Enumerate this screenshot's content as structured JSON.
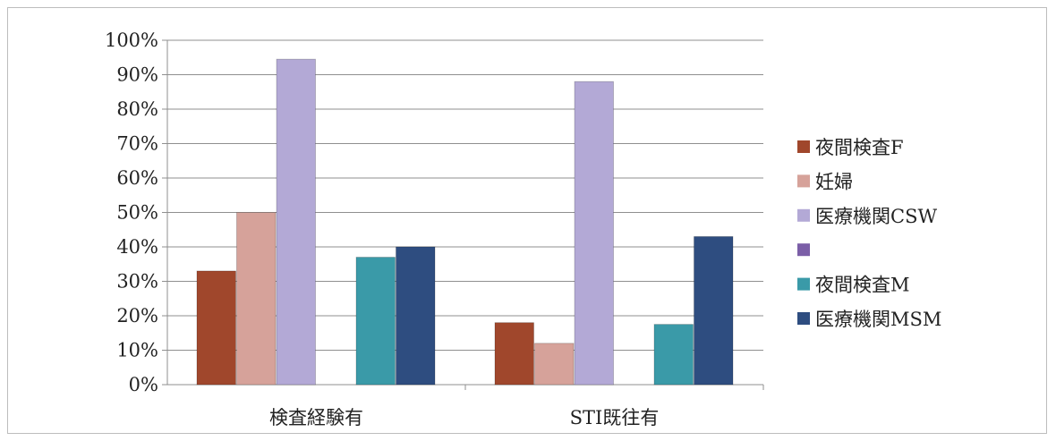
{
  "chart_data": {
    "type": "bar",
    "categories": [
      "検査経験有",
      "STI既往有"
    ],
    "series": [
      {
        "name": "夜間検査F",
        "color": "#a0472c",
        "values": [
          33,
          18
        ]
      },
      {
        "name": "妊婦",
        "color": "#d6a29a",
        "values": [
          50,
          12
        ]
      },
      {
        "name": "医療機関CSW",
        "color": "#b3a9d6",
        "values": [
          94.5,
          88
        ]
      },
      {
        "name": "",
        "color": "#7b5ea7",
        "values": [
          0,
          0
        ]
      },
      {
        "name": "夜間検査M",
        "color": "#3a9aa8",
        "values": [
          37,
          17.5
        ]
      },
      {
        "name": "医療機関MSM",
        "color": "#2e4d80",
        "values": [
          40,
          43
        ]
      }
    ],
    "ylim": [
      0,
      100
    ],
    "yticks": [
      "0%",
      "10%",
      "20%",
      "30%",
      "40%",
      "50%",
      "60%",
      "70%",
      "80%",
      "90%",
      "100%"
    ],
    "grid": true,
    "legend": "right"
  }
}
